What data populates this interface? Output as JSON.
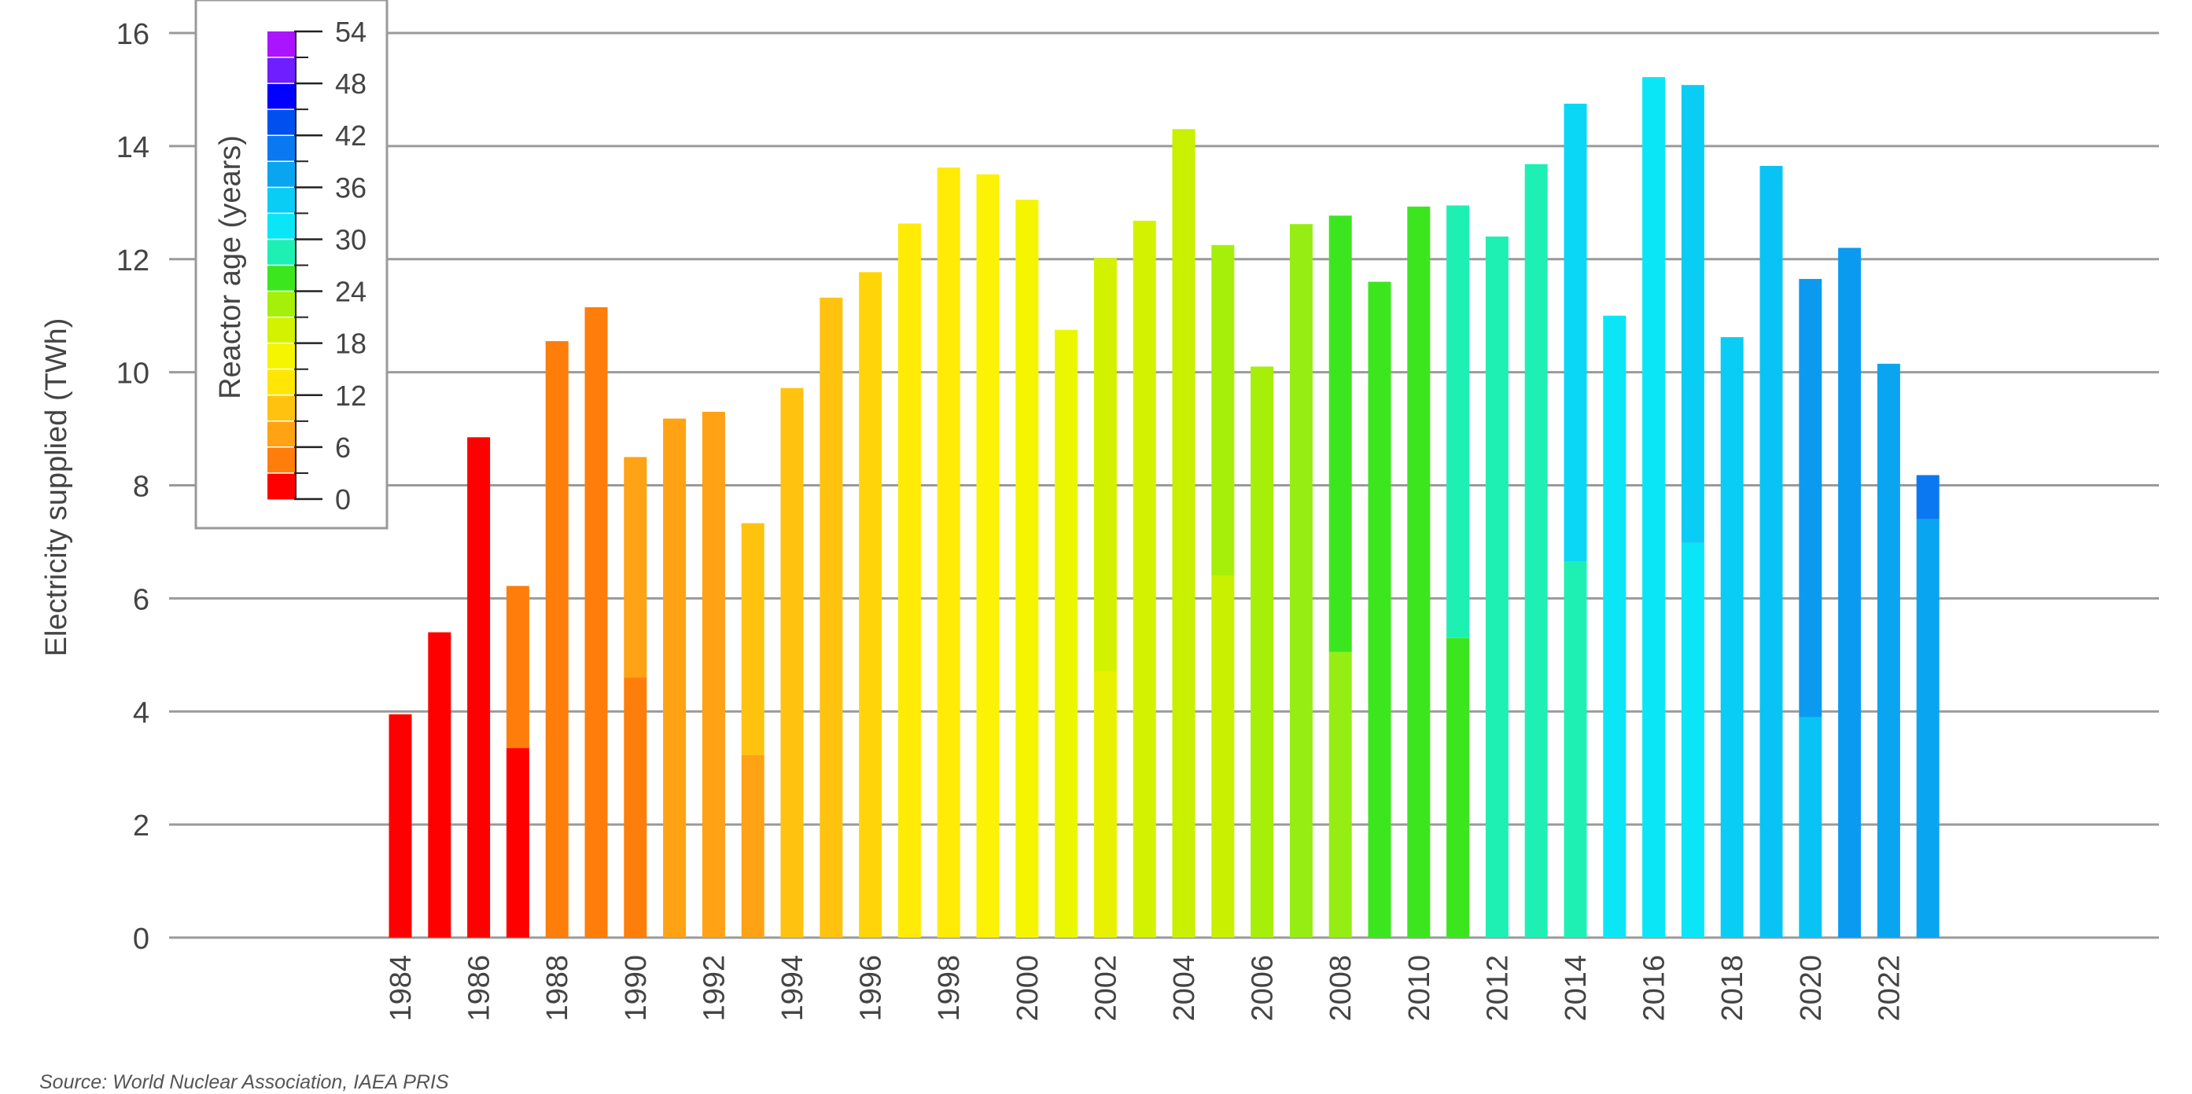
{
  "chart_data": {
    "type": "bar",
    "stacked": true,
    "ylabel": "Electricity supplied (TWh)",
    "ylim": [
      0,
      16
    ],
    "yticks": [
      0,
      2,
      4,
      6,
      8,
      10,
      12,
      14,
      16
    ],
    "grid": "horizontal",
    "years": [
      1984,
      1985,
      1986,
      1987,
      1988,
      1989,
      1990,
      1991,
      1992,
      1993,
      1994,
      1995,
      1996,
      1997,
      1998,
      1999,
      2000,
      2001,
      2002,
      2003,
      2004,
      2005,
      2006,
      2007,
      2008,
      2009,
      2010,
      2011,
      2012,
      2013,
      2014,
      2015,
      2016,
      2017,
      2018,
      2019,
      2020,
      2021,
      2022,
      2023
    ],
    "xtick_labels": [
      "1984",
      "1986",
      "1988",
      "1990",
      "1992",
      "1994",
      "1996",
      "1998",
      "2000",
      "2002",
      "2004",
      "2006",
      "2008",
      "2010",
      "2012",
      "2014",
      "2016",
      "2018",
      "2020",
      "2022"
    ],
    "bars": [
      {
        "year": 1984,
        "segments": [
          {
            "value": 3.95,
            "color": "#ff0000"
          }
        ]
      },
      {
        "year": 1985,
        "segments": [
          {
            "value": 5.4,
            "color": "#ff0000"
          }
        ]
      },
      {
        "year": 1986,
        "segments": [
          {
            "value": 8.85,
            "color": "#ff0000"
          }
        ]
      },
      {
        "year": 1987,
        "segments": [
          {
            "value": 3.35,
            "color": "#ff0000"
          },
          {
            "value": 2.87,
            "color": "#ff7d0a"
          }
        ]
      },
      {
        "year": 1988,
        "segments": [
          {
            "value": 10.55,
            "color": "#ff7d0a"
          }
        ]
      },
      {
        "year": 1989,
        "segments": [
          {
            "value": 11.15,
            "color": "#ff7d0a"
          }
        ]
      },
      {
        "year": 1990,
        "segments": [
          {
            "value": 4.6,
            "color": "#ff7d0a"
          },
          {
            "value": 3.9,
            "color": "#ffa214"
          }
        ]
      },
      {
        "year": 1991,
        "segments": [
          {
            "value": 9.18,
            "color": "#ffa214"
          }
        ]
      },
      {
        "year": 1992,
        "segments": [
          {
            "value": 9.3,
            "color": "#ffa214"
          }
        ]
      },
      {
        "year": 1993,
        "segments": [
          {
            "value": 3.23,
            "color": "#ffa214"
          },
          {
            "value": 4.1,
            "color": "#ffc30f"
          }
        ]
      },
      {
        "year": 1994,
        "segments": [
          {
            "value": 9.72,
            "color": "#ffc30f"
          }
        ]
      },
      {
        "year": 1995,
        "segments": [
          {
            "value": 11.32,
            "color": "#ffc30f"
          }
        ]
      },
      {
        "year": 1996,
        "segments": [
          {
            "value": 11.77,
            "color": "#ffd50a"
          }
        ]
      },
      {
        "year": 1997,
        "segments": [
          {
            "value": 12.63,
            "color": "#ffeb05"
          }
        ]
      },
      {
        "year": 1998,
        "segments": [
          {
            "value": 13.62,
            "color": "#ffeb05"
          }
        ]
      },
      {
        "year": 1999,
        "segments": [
          {
            "value": 13.5,
            "color": "#fcf205"
          }
        ]
      },
      {
        "year": 2000,
        "segments": [
          {
            "value": 13.05,
            "color": "#f5f500"
          }
        ]
      },
      {
        "year": 2001,
        "segments": [
          {
            "value": 10.75,
            "color": "#eaf700"
          }
        ]
      },
      {
        "year": 2002,
        "segments": [
          {
            "value": 4.7,
            "color": "#e8f200"
          },
          {
            "value": 7.32,
            "color": "#d2f200"
          }
        ]
      },
      {
        "year": 2003,
        "segments": [
          {
            "value": 12.68,
            "color": "#d2f200"
          }
        ]
      },
      {
        "year": 2004,
        "segments": [
          {
            "value": 14.3,
            "color": "#c8f000"
          }
        ]
      },
      {
        "year": 2005,
        "segments": [
          {
            "value": 6.4,
            "color": "#c8f000"
          },
          {
            "value": 5.85,
            "color": "#a5ef0a"
          }
        ]
      },
      {
        "year": 2006,
        "segments": [
          {
            "value": 10.1,
            "color": "#a5ef0a"
          }
        ]
      },
      {
        "year": 2007,
        "segments": [
          {
            "value": 12.62,
            "color": "#96ed14"
          }
        ]
      },
      {
        "year": 2008,
        "segments": [
          {
            "value": 5.05,
            "color": "#96ed14"
          },
          {
            "value": 7.72,
            "color": "#3ce61e"
          }
        ]
      },
      {
        "year": 2009,
        "segments": [
          {
            "value": 11.6,
            "color": "#3ce61e"
          }
        ]
      },
      {
        "year": 2010,
        "segments": [
          {
            "value": 12.93,
            "color": "#3ce61e"
          }
        ]
      },
      {
        "year": 2011,
        "segments": [
          {
            "value": 5.3,
            "color": "#3ce61e"
          },
          {
            "value": 7.65,
            "color": "#1ef0b4"
          }
        ]
      },
      {
        "year": 2012,
        "segments": [
          {
            "value": 12.4,
            "color": "#1ef0b4"
          }
        ]
      },
      {
        "year": 2013,
        "segments": [
          {
            "value": 13.68,
            "color": "#1ef0b4"
          }
        ]
      },
      {
        "year": 2014,
        "segments": [
          {
            "value": 6.65,
            "color": "#1ef0b4"
          },
          {
            "value": 8.1,
            "color": "#0ad7f5"
          }
        ]
      },
      {
        "year": 2015,
        "segments": [
          {
            "value": 11.0,
            "color": "#0ae6f5"
          }
        ]
      },
      {
        "year": 2016,
        "segments": [
          {
            "value": 15.22,
            "color": "#0ae6f5"
          }
        ]
      },
      {
        "year": 2017,
        "segments": [
          {
            "value": 6.98,
            "color": "#0ae6f5"
          },
          {
            "value": 8.1,
            "color": "#0acdf5"
          }
        ]
      },
      {
        "year": 2018,
        "segments": [
          {
            "value": 10.62,
            "color": "#0acdf5"
          }
        ]
      },
      {
        "year": 2019,
        "segments": [
          {
            "value": 13.65,
            "color": "#0ac3f5"
          }
        ]
      },
      {
        "year": 2020,
        "segments": [
          {
            "value": 3.9,
            "color": "#0ac3f5"
          },
          {
            "value": 7.75,
            "color": "#0a9bf0"
          }
        ]
      },
      {
        "year": 2021,
        "segments": [
          {
            "value": 12.2,
            "color": "#0a9bf0"
          }
        ]
      },
      {
        "year": 2022,
        "segments": [
          {
            "value": 10.15,
            "color": "#0aa5f0"
          }
        ]
      },
      {
        "year": 2023,
        "segments": [
          {
            "value": 7.4,
            "color": "#0aa5f0"
          },
          {
            "value": 0.78,
            "color": "#0a78f0"
          }
        ]
      }
    ],
    "legend": {
      "title": "Reactor age (years)",
      "placement": "top-left",
      "tick_labels": [
        "54",
        "48",
        "42",
        "36",
        "30",
        "24",
        "18",
        "12",
        "6",
        "0"
      ],
      "color_scale": [
        "#ff0000",
        "#ff7d0a",
        "#ffa214",
        "#ffc30f",
        "#ffe605",
        "#f5f500",
        "#d2f200",
        "#a5ef0a",
        "#3ce61e",
        "#1ef0b4",
        "#0ae6f5",
        "#0acdf5",
        "#0aa5f0",
        "#0a78f0",
        "#0050f0",
        "#0000ff",
        "#6e1eff",
        "#aa14ff"
      ]
    },
    "source": "Source: World Nuclear Association, IAEA PRIS"
  }
}
